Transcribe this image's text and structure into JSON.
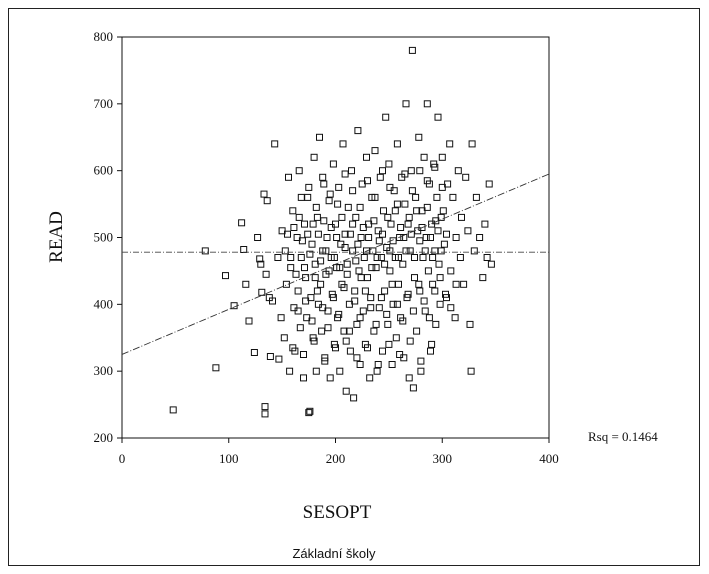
{
  "chart_data": {
    "type": "scatter",
    "title": "",
    "xlabel": "SESOPT",
    "ylabel": "READ",
    "xlim": [
      0,
      400
    ],
    "ylim": [
      200,
      800
    ],
    "xticks": [
      "0",
      "100",
      "200",
      "300",
      "400"
    ],
    "yticks": [
      "200",
      "300",
      "400",
      "500",
      "600",
      "700",
      "800"
    ],
    "annotation": "Rsq = 0.1464",
    "caption": "Základní školy",
    "grid": false,
    "mean_line": {
      "y": 478
    },
    "fit_line": {
      "x": [
        0,
        400
      ],
      "y": [
        325,
        595
      ]
    },
    "series": [
      {
        "marker": "open-square",
        "points": [
          [
            48,
            242
          ],
          [
            78,
            480
          ],
          [
            88,
            305
          ],
          [
            97,
            443
          ],
          [
            105,
            398
          ],
          [
            112,
            522
          ],
          [
            114,
            482
          ],
          [
            116,
            430
          ],
          [
            119,
            375
          ],
          [
            124,
            328
          ],
          [
            127,
            500
          ],
          [
            129,
            468
          ],
          [
            130,
            460
          ],
          [
            131,
            418
          ],
          [
            133,
            565
          ],
          [
            134,
            247
          ],
          [
            134,
            236
          ],
          [
            135,
            445
          ],
          [
            136,
            555
          ],
          [
            138,
            410
          ],
          [
            139,
            322
          ],
          [
            141,
            405
          ],
          [
            143,
            640
          ],
          [
            146,
            470
          ],
          [
            147,
            318
          ],
          [
            149,
            380
          ],
          [
            150,
            510
          ],
          [
            152,
            350
          ],
          [
            153,
            480
          ],
          [
            154,
            430
          ],
          [
            156,
            590
          ],
          [
            157,
            300
          ],
          [
            158,
            455
          ],
          [
            160,
            540
          ],
          [
            161,
            395
          ],
          [
            162,
            330
          ],
          [
            164,
            500
          ],
          [
            165,
            420
          ],
          [
            166,
            600
          ],
          [
            167,
            365
          ],
          [
            168,
            470
          ],
          [
            170,
            290
          ],
          [
            171,
            520
          ],
          [
            172,
            440
          ],
          [
            173,
            380
          ],
          [
            174,
            560
          ],
          [
            175,
            238
          ],
          [
            176,
            240
          ],
          [
            177,
            410
          ],
          [
            178,
            490
          ],
          [
            179,
            350
          ],
          [
            180,
            620
          ],
          [
            181,
            460
          ],
          [
            182,
            300
          ],
          [
            183,
            530
          ],
          [
            184,
            400
          ],
          [
            185,
            650
          ],
          [
            186,
            430
          ],
          [
            187,
            360
          ],
          [
            188,
            480
          ],
          [
            189,
            580
          ],
          [
            190,
            320
          ],
          [
            191,
            445
          ],
          [
            192,
            500
          ],
          [
            193,
            390
          ],
          [
            194,
            555
          ],
          [
            195,
            290
          ],
          [
            196,
            470
          ],
          [
            197,
            415
          ],
          [
            198,
            610
          ],
          [
            199,
            340
          ],
          [
            200,
            520
          ],
          [
            201,
            455
          ],
          [
            202,
            380
          ],
          [
            203,
            575
          ],
          [
            204,
            300
          ],
          [
            205,
            490
          ],
          [
            206,
            430
          ],
          [
            207,
            640
          ],
          [
            208,
            360
          ],
          [
            209,
            505
          ],
          [
            210,
            270
          ],
          [
            211,
            460
          ],
          [
            212,
            545
          ],
          [
            213,
            400
          ],
          [
            214,
            330
          ],
          [
            215,
            600
          ],
          [
            216,
            480
          ],
          [
            217,
            260
          ],
          [
            218,
            420
          ],
          [
            219,
            530
          ],
          [
            220,
            370
          ],
          [
            221,
            660
          ],
          [
            222,
            450
          ],
          [
            223,
            310
          ],
          [
            224,
            500
          ],
          [
            225,
            580
          ],
          [
            226,
            390
          ],
          [
            227,
            470
          ],
          [
            228,
            340
          ],
          [
            229,
            620
          ],
          [
            230,
            440
          ],
          [
            231,
            520
          ],
          [
            232,
            290
          ],
          [
            233,
            410
          ],
          [
            234,
            560
          ],
          [
            235,
            480
          ],
          [
            236,
            360
          ],
          [
            237,
            630
          ],
          [
            238,
            455
          ],
          [
            239,
            300
          ],
          [
            240,
            510
          ],
          [
            241,
            395
          ],
          [
            242,
            590
          ],
          [
            243,
            470
          ],
          [
            244,
            330
          ],
          [
            245,
            540
          ],
          [
            246,
            420
          ],
          [
            247,
            680
          ],
          [
            248,
            485
          ],
          [
            249,
            370
          ],
          [
            250,
            610
          ],
          [
            251,
            450
          ],
          [
            252,
            520
          ],
          [
            253,
            310
          ],
          [
            254,
            400
          ],
          [
            255,
            570
          ],
          [
            256,
            470
          ],
          [
            257,
            350
          ],
          [
            258,
            640
          ],
          [
            259,
            430
          ],
          [
            260,
            500
          ],
          [
            261,
            380
          ],
          [
            262,
            590
          ],
          [
            263,
            460
          ],
          [
            264,
            320
          ],
          [
            265,
            550
          ],
          [
            266,
            700
          ],
          [
            267,
            410
          ],
          [
            268,
            520
          ],
          [
            269,
            290
          ],
          [
            270,
            480
          ],
          [
            271,
            600
          ],
          [
            272,
            780
          ],
          [
            273,
            275
          ],
          [
            274,
            440
          ],
          [
            275,
            560
          ],
          [
            276,
            360
          ],
          [
            277,
            510
          ],
          [
            278,
            650
          ],
          [
            279,
            420
          ],
          [
            280,
            300
          ],
          [
            281,
            540
          ],
          [
            282,
            470
          ],
          [
            283,
            620
          ],
          [
            284,
            390
          ],
          [
            285,
            500
          ],
          [
            286,
            700
          ],
          [
            287,
            450
          ],
          [
            288,
            580
          ],
          [
            289,
            330
          ],
          [
            290,
            520
          ],
          [
            291,
            430
          ],
          [
            292,
            610
          ],
          [
            293,
            480
          ],
          [
            294,
            370
          ],
          [
            295,
            560
          ],
          [
            296,
            680
          ],
          [
            297,
            460
          ],
          [
            298,
            400
          ],
          [
            299,
            530
          ],
          [
            300,
            620
          ],
          [
            302,
            490
          ],
          [
            304,
            410
          ],
          [
            305,
            580
          ],
          [
            307,
            640
          ],
          [
            308,
            450
          ],
          [
            310,
            560
          ],
          [
            312,
            380
          ],
          [
            313,
            500
          ],
          [
            315,
            600
          ],
          [
            317,
            470
          ],
          [
            318,
            530
          ],
          [
            320,
            430
          ],
          [
            322,
            590
          ],
          [
            324,
            510
          ],
          [
            326,
            370
          ],
          [
            327,
            300
          ],
          [
            328,
            640
          ],
          [
            330,
            480
          ],
          [
            332,
            560
          ],
          [
            335,
            500
          ],
          [
            338,
            440
          ],
          [
            340,
            520
          ],
          [
            342,
            470
          ],
          [
            344,
            580
          ],
          [
            346,
            460
          ],
          [
            155,
            505
          ],
          [
            158,
            470
          ],
          [
            161,
            515
          ],
          [
            163,
            445
          ],
          [
            166,
            530
          ],
          [
            169,
            495
          ],
          [
            171,
            455
          ],
          [
            174,
            505
          ],
          [
            176,
            475
          ],
          [
            179,
            520
          ],
          [
            181,
            440
          ],
          [
            184,
            505
          ],
          [
            186,
            465
          ],
          [
            189,
            525
          ],
          [
            191,
            480
          ],
          [
            194,
            450
          ],
          [
            196,
            515
          ],
          [
            199,
            470
          ],
          [
            201,
            500
          ],
          [
            204,
            455
          ],
          [
            206,
            530
          ],
          [
            209,
            485
          ],
          [
            211,
            445
          ],
          [
            214,
            505
          ],
          [
            216,
            520
          ],
          [
            219,
            465
          ],
          [
            221,
            490
          ],
          [
            224,
            440
          ],
          [
            226,
            515
          ],
          [
            229,
            480
          ],
          [
            231,
            500
          ],
          [
            234,
            455
          ],
          [
            236,
            525
          ],
          [
            239,
            470
          ],
          [
            241,
            495
          ],
          [
            244,
            505
          ],
          [
            246,
            460
          ],
          [
            249,
            530
          ],
          [
            251,
            480
          ],
          [
            254,
            495
          ],
          [
            256,
            540
          ],
          [
            259,
            470
          ],
          [
            261,
            515
          ],
          [
            264,
            500
          ],
          [
            266,
            480
          ],
          [
            269,
            530
          ],
          [
            271,
            505
          ],
          [
            274,
            470
          ],
          [
            276,
            540
          ],
          [
            279,
            495
          ],
          [
            281,
            515
          ],
          [
            284,
            480
          ],
          [
            286,
            545
          ],
          [
            289,
            500
          ],
          [
            291,
            470
          ],
          [
            294,
            525
          ],
          [
            296,
            510
          ],
          [
            299,
            480
          ],
          [
            301,
            540
          ],
          [
            304,
            505
          ],
          [
            165,
            390
          ],
          [
            172,
            405
          ],
          [
            178,
            375
          ],
          [
            183,
            420
          ],
          [
            188,
            395
          ],
          [
            193,
            365
          ],
          [
            198,
            410
          ],
          [
            203,
            385
          ],
          [
            208,
            425
          ],
          [
            213,
            360
          ],
          [
            218,
            405
          ],
          [
            223,
            380
          ],
          [
            228,
            420
          ],
          [
            233,
            395
          ],
          [
            238,
            370
          ],
          [
            243,
            410
          ],
          [
            248,
            385
          ],
          [
            253,
            430
          ],
          [
            258,
            400
          ],
          [
            263,
            375
          ],
          [
            268,
            415
          ],
          [
            273,
            390
          ],
          [
            278,
            430
          ],
          [
            283,
            405
          ],
          [
            288,
            380
          ],
          [
            293,
            420
          ],
          [
            298,
            440
          ],
          [
            303,
            415
          ],
          [
            308,
            395
          ],
          [
            313,
            430
          ],
          [
            168,
            560
          ],
          [
            175,
            575
          ],
          [
            182,
            545
          ],
          [
            188,
            590
          ],
          [
            195,
            565
          ],
          [
            202,
            550
          ],
          [
            209,
            595
          ],
          [
            216,
            570
          ],
          [
            223,
            545
          ],
          [
            230,
            585
          ],
          [
            237,
            560
          ],
          [
            244,
            600
          ],
          [
            251,
            575
          ],
          [
            258,
            550
          ],
          [
            265,
            595
          ],
          [
            272,
            570
          ],
          [
            279,
            600
          ],
          [
            286,
            585
          ],
          [
            293,
            605
          ],
          [
            300,
            575
          ],
          [
            160,
            335
          ],
          [
            170,
            325
          ],
          [
            180,
            345
          ],
          [
            190,
            315
          ],
          [
            200,
            335
          ],
          [
            210,
            345
          ],
          [
            220,
            320
          ],
          [
            230,
            335
          ],
          [
            240,
            310
          ],
          [
            250,
            340
          ],
          [
            260,
            325
          ],
          [
            270,
            345
          ],
          [
            280,
            315
          ],
          [
            290,
            340
          ]
        ]
      }
    ]
  }
}
